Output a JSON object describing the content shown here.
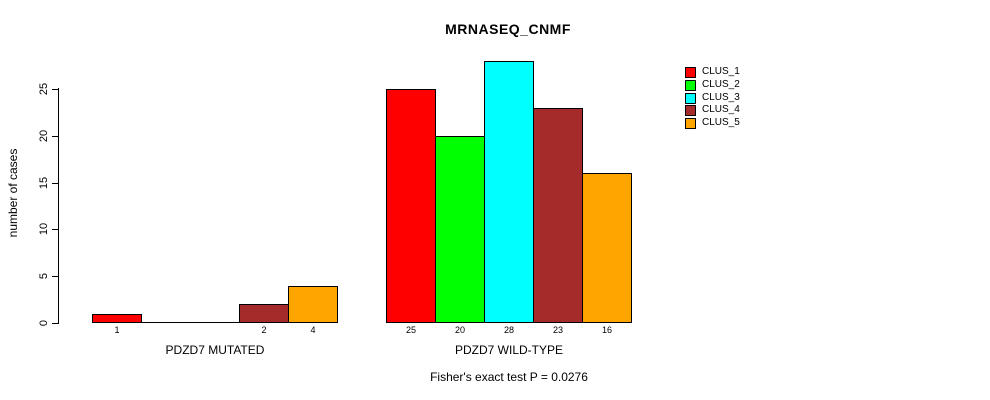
{
  "chart_data": {
    "type": "bar",
    "title": "MRNASEQ_CNMF",
    "ylabel": "number of cases",
    "xlabel": "",
    "categories": [
      "PDZD7 MUTATED",
      "PDZD7 WILD-TYPE"
    ],
    "series": [
      {
        "name": "CLUS_1",
        "color": "#FF0000",
        "values": [
          1,
          25
        ]
      },
      {
        "name": "CLUS_2",
        "color": "#00FF00",
        "values": [
          0,
          20
        ]
      },
      {
        "name": "CLUS_3",
        "color": "#00FFFF",
        "values": [
          0,
          28
        ]
      },
      {
        "name": "CLUS_4",
        "color": "#A52A2A",
        "values": [
          2,
          23
        ]
      },
      {
        "name": "CLUS_5",
        "color": "#FFA500",
        "values": [
          4,
          16
        ]
      }
    ],
    "bar_value_labels": [
      [
        "1",
        "",
        "",
        "2",
        "4"
      ],
      [
        "25",
        "20",
        "28",
        "23",
        "16"
      ]
    ],
    "yticks": [
      0,
      5,
      10,
      15,
      20,
      25
    ],
    "ylim": [
      0,
      28
    ],
    "grid": false,
    "legend_position": "right",
    "annotation": "Fisher's exact test P = 0.0276",
    "axis_color": "#000000",
    "background_color": "#FFFFFF"
  }
}
